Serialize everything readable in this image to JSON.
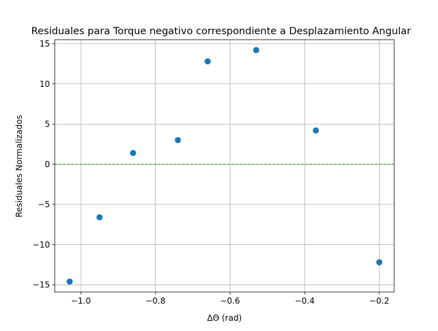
{
  "chart_data": {
    "type": "scatter",
    "title": "Residuales para Torque negativo correspondiente a Desplazamiento Angular",
    "xlabel": "ΔΘ (rad)",
    "ylabel": "Residuales Normalizados",
    "xlim": [
      -1.07,
      -0.16
    ],
    "ylim": [
      -15.9,
      15.5
    ],
    "x_ticks": [
      -1.0,
      -0.8,
      -0.6,
      -0.4,
      -0.2
    ],
    "x_tick_labels": [
      "−1.0",
      "−0.8",
      "−0.6",
      "−0.4",
      "−0.2"
    ],
    "y_ticks": [
      -15,
      -10,
      -5,
      0,
      5,
      10,
      15
    ],
    "y_tick_labels": [
      "−15",
      "−10",
      "−5",
      "0",
      "5",
      "10",
      "15"
    ],
    "grid": true,
    "reference_line": {
      "y": 0,
      "style": "dashed",
      "color": "#2ca02c"
    },
    "series": [
      {
        "color": "#1f77b4",
        "points": [
          {
            "x": -1.03,
            "y": -14.6
          },
          {
            "x": -0.95,
            "y": -6.6
          },
          {
            "x": -0.86,
            "y": 1.4
          },
          {
            "x": -0.74,
            "y": 3.0
          },
          {
            "x": -0.66,
            "y": 12.8
          },
          {
            "x": -0.53,
            "y": 14.2
          },
          {
            "x": -0.37,
            "y": 4.2
          },
          {
            "x": -0.2,
            "y": -12.2
          }
        ]
      }
    ]
  }
}
